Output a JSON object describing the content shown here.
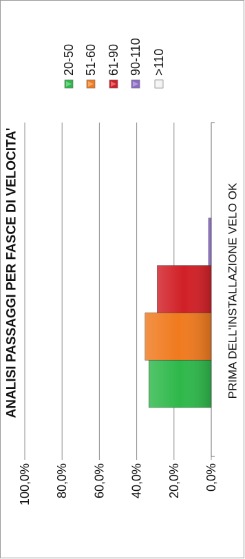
{
  "chart_data": {
    "type": "bar",
    "orientation": "rotated-90-clockwise",
    "title": "ANALISI PASSAGGI PER FASCE DI VELOCITA'",
    "categories": [
      "PRIMA DELL'INSTALLAZIONE VELO OK"
    ],
    "series": [
      {
        "name": "20-50",
        "values": [
          33.5
        ],
        "color": "#2eb84a"
      },
      {
        "name": "51-60",
        "values": [
          35.5
        ],
        "color": "#f07a1e"
      },
      {
        "name": "61-90",
        "values": [
          29.0
        ],
        "color": "#d11f26"
      },
      {
        "name": "90-110",
        "values": [
          1.5
        ],
        "color": "#8a6cc4"
      },
      {
        "name": ">110",
        "values": [
          0.0
        ],
        "color": "#f2f2f2"
      }
    ],
    "yticks": [
      "0,0%",
      "20,0%",
      "40,0%",
      "60,0%",
      "80,0%",
      "100,0%"
    ],
    "ylim": [
      0,
      100
    ],
    "grid": true,
    "legend_position": "top"
  }
}
